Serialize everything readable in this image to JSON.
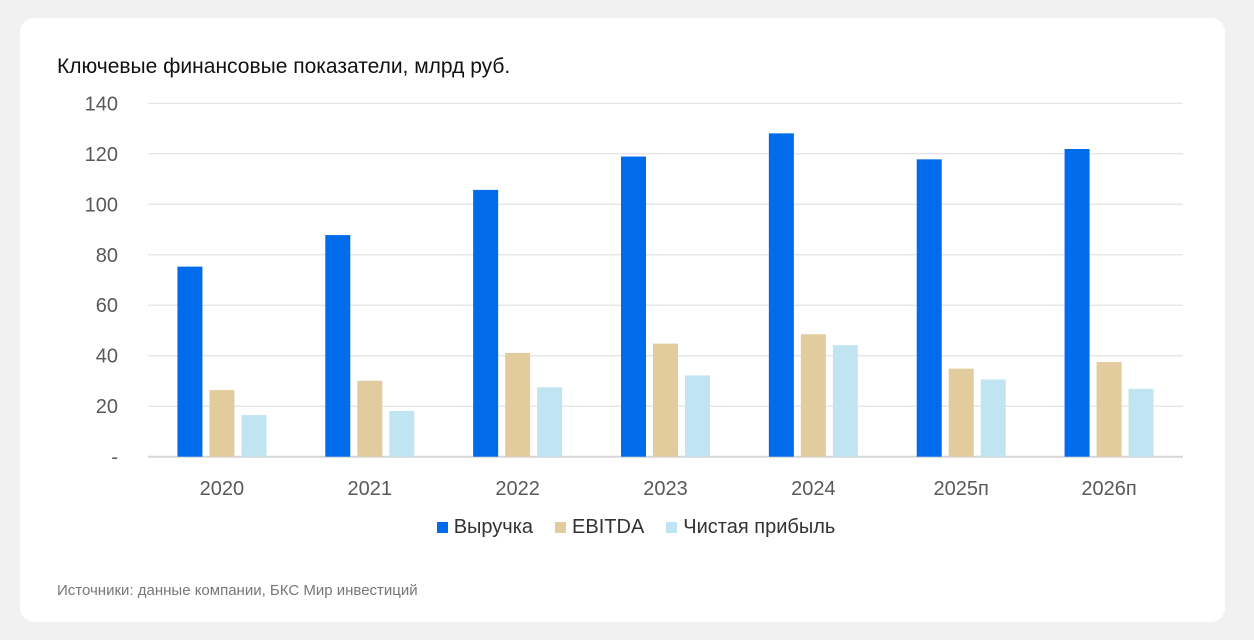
{
  "chart_data": {
    "type": "bar",
    "title": "Ключевые финансовые показатели, млрд руб.",
    "categories": [
      "2020",
      "2021",
      "2022",
      "2023",
      "2024",
      "2025п",
      "2026п"
    ],
    "series": [
      {
        "name": "Выручка",
        "color": "#006cec",
        "values": [
          75.3,
          87.8,
          105.7,
          118.9,
          128.1,
          117.8,
          121.9
        ]
      },
      {
        "name": "EBITDA",
        "color": "#e2cc9e",
        "values": [
          26.4,
          30.1,
          41.1,
          44.8,
          48.5,
          34.9,
          37.5
        ]
      },
      {
        "name": "Чистая прибыль",
        "color": "#c1e4f3",
        "values": [
          16.5,
          18.1,
          27.5,
          32.2,
          44.2,
          30.6,
          26.9
        ]
      }
    ],
    "ylim": [
      0,
      140
    ],
    "yticks": [
      0,
      20,
      40,
      60,
      80,
      100,
      120,
      140
    ],
    "ytick_labels": [
      "-",
      "20",
      "40",
      "60",
      "80",
      "100",
      "120",
      "140"
    ],
    "grid": true,
    "legend": "bottom"
  },
  "source": "Источники: данные компании, БКС Мир инвестиций"
}
